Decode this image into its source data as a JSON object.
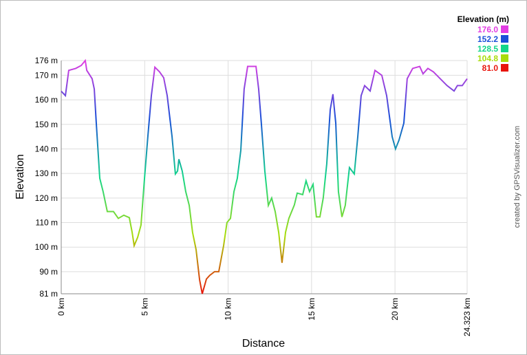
{
  "chart_data": {
    "type": "line",
    "x_label": "Distance",
    "y_label": "Elevation",
    "credit": "created by GPSVisualizer.com",
    "legend_title": "Elevation (m)",
    "legend": [
      {
        "value": 176.0,
        "label": "176.0",
        "color": "#e23de2"
      },
      {
        "value": 152.2,
        "label": "152.2",
        "color": "#1a4fd8"
      },
      {
        "value": 128.5,
        "label": "128.5",
        "color": "#12d68a"
      },
      {
        "value": 104.8,
        "label": "104.8",
        "color": "#a8dc0c"
      },
      {
        "value": 81.0,
        "label": "81.0",
        "color": "#e8140c"
      }
    ],
    "grid": true,
    "xlim": [
      0,
      24.323
    ],
    "xticks": [
      {
        "value": 0,
        "label": "0 km"
      },
      {
        "value": 5,
        "label": "5 km"
      },
      {
        "value": 10,
        "label": "10 km"
      },
      {
        "value": 15,
        "label": "15 km"
      },
      {
        "value": 20,
        "label": "20 km"
      },
      {
        "value": 24.323,
        "label": "24.323 km"
      }
    ],
    "ylim": [
      81,
      176
    ],
    "yticks": [
      {
        "value": 81,
        "label": "81 m"
      },
      {
        "value": 90,
        "label": "90 m"
      },
      {
        "value": 100,
        "label": "100 m"
      },
      {
        "value": 110,
        "label": "110 m"
      },
      {
        "value": 120,
        "label": "120 m"
      },
      {
        "value": 130,
        "label": "130 m"
      },
      {
        "value": 140,
        "label": "140 m"
      },
      {
        "value": 150,
        "label": "150 m"
      },
      {
        "value": 160,
        "label": "160 m"
      },
      {
        "value": 170,
        "label": "170 m"
      },
      {
        "value": 176,
        "label": "176 m"
      }
    ],
    "x": [
      0,
      0.25,
      0.45,
      0.87,
      1.2,
      1.44,
      1.53,
      1.85,
      1.98,
      2.1,
      2.31,
      2.51,
      2.76,
      3.13,
      3.42,
      3.75,
      4.08,
      4.25,
      4.37,
      4.58,
      4.78,
      4.99,
      5.19,
      5.4,
      5.61,
      5.89,
      6.14,
      6.35,
      6.64,
      6.84,
      6.97,
      7.05,
      7.25,
      7.46,
      7.67,
      7.87,
      8.08,
      8.29,
      8.45,
      8.7,
      8.9,
      9.19,
      9.44,
      9.73,
      9.93,
      10.14,
      10.35,
      10.55,
      10.76,
      10.96,
      11.17,
      11.67,
      11.83,
      11.99,
      12.2,
      12.41,
      12.61,
      12.82,
      13.03,
      13.23,
      13.44,
      13.64,
      13.97,
      14.14,
      14.47,
      14.67,
      14.88,
      15.09,
      15.29,
      15.5,
      15.7,
      15.91,
      16.12,
      16.28,
      16.45,
      16.61,
      16.82,
      17.02,
      17.27,
      17.56,
      17.77,
      17.97,
      18.18,
      18.51,
      18.8,
      19.21,
      19.5,
      19.83,
      20.03,
      20.24,
      20.53,
      20.73,
      21.06,
      21.48,
      21.68,
      21.97,
      22.3,
      22.71,
      23.12,
      23.54,
      23.74,
      24.03,
      24.323
    ],
    "series": [
      {
        "name": "Elevation",
        "values": [
          163.5,
          161.7,
          172,
          172.8,
          174,
          176,
          172,
          168.6,
          164.4,
          150.5,
          128,
          122.6,
          114.5,
          114.5,
          111.7,
          113,
          112,
          106,
          100.6,
          104,
          109,
          128,
          145,
          161.7,
          173.3,
          171.4,
          169,
          161.7,
          145,
          129.8,
          131,
          135.8,
          131,
          122.6,
          117,
          106,
          99,
          86.7,
          81,
          87,
          88.5,
          90,
          90,
          100.6,
          110,
          111.7,
          122.6,
          128,
          139.4,
          164.4,
          173.6,
          173.6,
          164.4,
          150.5,
          131,
          117,
          120,
          114.5,
          106,
          93.6,
          106,
          111.7,
          117.2,
          122,
          121.4,
          127,
          122.6,
          125.6,
          112.3,
          112.3,
          120,
          133.9,
          156,
          162.3,
          150.5,
          122.6,
          112.3,
          117,
          132.4,
          129.8,
          145,
          161.7,
          165.8,
          163.6,
          172,
          170,
          161.7,
          145,
          140,
          143.6,
          150.5,
          168.6,
          172.8,
          173.6,
          170.6,
          172.8,
          171.4,
          168.6,
          165.8,
          163.6,
          165.8,
          165.8,
          168.6
        ]
      }
    ]
  }
}
